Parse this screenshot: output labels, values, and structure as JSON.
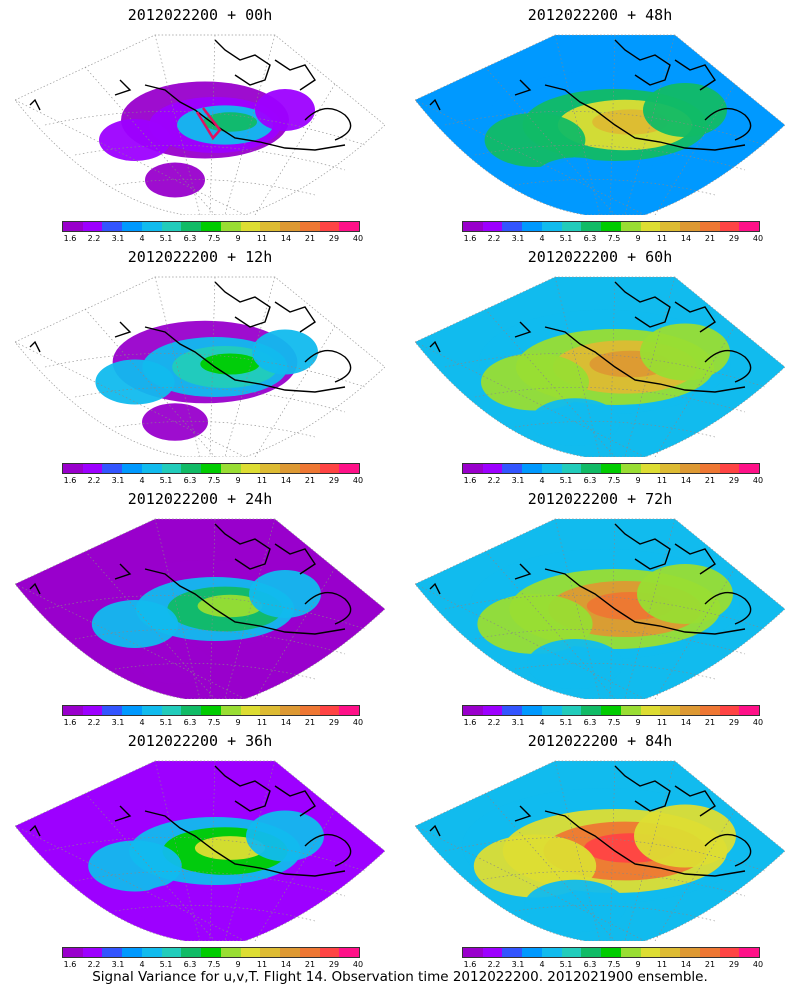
{
  "panels": [
    {
      "title": "2012022200 + 00h",
      "level": 0
    },
    {
      "title": "2012022200 + 48h",
      "level": 4
    },
    {
      "title": "2012022200 + 12h",
      "level": 1
    },
    {
      "title": "2012022200 + 60h",
      "level": 5
    },
    {
      "title": "2012022200 + 24h",
      "level": 2
    },
    {
      "title": "2012022200 + 72h",
      "level": 6
    },
    {
      "title": "2012022200 + 36h",
      "level": 3
    },
    {
      "title": "2012022200 + 84h",
      "level": 7
    }
  ],
  "colorbar": {
    "colors": [
      "#9900cc",
      "#9d00ff",
      "#3355ff",
      "#0099ff",
      "#11bbee",
      "#22ccbb",
      "#11bb66",
      "#00cc00",
      "#99dd33",
      "#dddd33",
      "#ddbb33",
      "#dd9933",
      "#ee7733",
      "#ff4444",
      "#ff1188"
    ],
    "ticks": [
      "1.6",
      "2.2",
      "3.1",
      "4",
      "5.1",
      "6.3",
      "7.5",
      "9",
      "11",
      "14",
      "21",
      "29",
      "40"
    ]
  },
  "caption": "Signal Variance for u,v,T. Flight 14. Observation time 2012022200. 2012021900 ensemble."
}
